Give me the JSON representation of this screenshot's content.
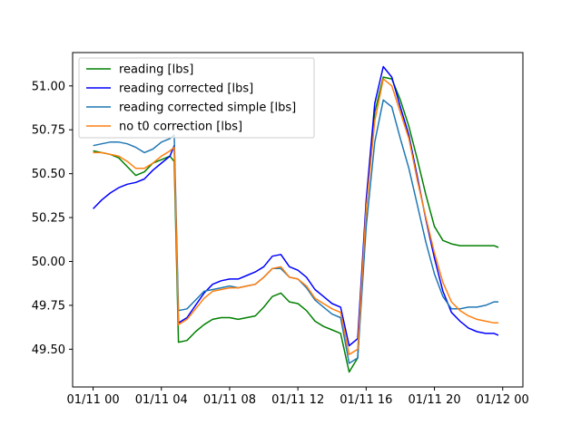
{
  "chart_data": {
    "type": "line",
    "title": "",
    "xlabel": "",
    "ylabel": "",
    "grid": false,
    "legend_placement": "top-left",
    "xlim": [
      "01/11 00:00",
      "01/11 23:59"
    ],
    "ylim": [
      49.285,
      51.19
    ],
    "x_ticks": [
      "01/11 00",
      "01/11 04",
      "01/11 08",
      "01/11 12",
      "01/11 16",
      "01/11 20",
      "01/12 00"
    ],
    "y_ticks": [
      "49.50",
      "49.75",
      "50.00",
      "50.25",
      "50.50",
      "50.75",
      "51.00"
    ],
    "x": [
      "01/11 00:00",
      "01/11 00:30",
      "01/11 01:00",
      "01/11 01:30",
      "01/11 02:00",
      "01/11 02:30",
      "01/11 03:00",
      "01/11 03:30",
      "01/11 04:00",
      "01/11 04:30",
      "01/11 04:45",
      "01/11 05:00",
      "01/11 05:30",
      "01/11 06:00",
      "01/11 06:30",
      "01/11 07:00",
      "01/11 07:30",
      "01/11 08:00",
      "01/11 08:30",
      "01/11 09:00",
      "01/11 09:30",
      "01/11 10:00",
      "01/11 10:30",
      "01/11 11:00",
      "01/11 11:30",
      "01/11 12:00",
      "01/11 12:30",
      "01/11 13:00",
      "01/11 13:30",
      "01/11 14:00",
      "01/11 14:30",
      "01/11 15:00",
      "01/11 15:30",
      "01/11 16:00",
      "01/11 16:30",
      "01/11 17:00",
      "01/11 17:30",
      "01/11 18:00",
      "01/11 18:30",
      "01/11 19:00",
      "01/11 19:30",
      "01/11 20:00",
      "01/11 20:30",
      "01/11 21:00",
      "01/11 21:30",
      "01/11 22:00",
      "01/11 22:30",
      "01/11 23:00",
      "01/11 23:30",
      "01/11 23:45"
    ],
    "series": [
      {
        "name": "reading [lbs]",
        "color": "#008000",
        "values": [
          50.63,
          50.62,
          50.61,
          50.59,
          50.54,
          50.49,
          50.51,
          50.56,
          50.58,
          50.6,
          50.57,
          49.54,
          49.55,
          49.6,
          49.64,
          49.67,
          49.68,
          49.68,
          49.67,
          49.68,
          49.69,
          49.74,
          49.8,
          49.82,
          49.77,
          49.76,
          49.72,
          49.66,
          49.63,
          49.61,
          49.59,
          49.37,
          49.45,
          50.3,
          50.85,
          51.05,
          51.04,
          50.92,
          50.77,
          50.58,
          50.38,
          50.2,
          50.12,
          50.1,
          50.09,
          50.09,
          50.09,
          50.09,
          50.09,
          50.08
        ]
      },
      {
        "name": "reading corrected [lbs]",
        "color": "#0000ff",
        "values": [
          50.3,
          50.35,
          50.39,
          50.42,
          50.44,
          50.45,
          50.47,
          50.52,
          50.56,
          50.6,
          50.66,
          49.65,
          49.68,
          49.75,
          49.82,
          49.87,
          49.89,
          49.9,
          49.9,
          49.92,
          49.94,
          49.97,
          50.03,
          50.04,
          49.97,
          49.95,
          49.91,
          49.84,
          49.8,
          49.76,
          49.74,
          49.52,
          49.56,
          50.35,
          50.9,
          51.11,
          51.05,
          50.88,
          50.72,
          50.48,
          50.24,
          50.02,
          49.83,
          49.71,
          49.66,
          49.62,
          49.6,
          49.59,
          49.59,
          49.58
        ]
      },
      {
        "name": "reading corrected simple [lbs]",
        "color": "#1f77b4",
        "values": [
          50.66,
          50.67,
          50.68,
          50.68,
          50.67,
          50.65,
          50.62,
          50.64,
          50.68,
          50.7,
          50.72,
          49.72,
          49.73,
          49.78,
          49.83,
          49.84,
          49.85,
          49.86,
          49.85,
          49.86,
          49.87,
          49.91,
          49.96,
          49.96,
          49.91,
          49.9,
          49.85,
          49.78,
          49.74,
          49.7,
          49.68,
          49.42,
          49.45,
          50.2,
          50.68,
          50.92,
          50.88,
          50.7,
          50.53,
          50.32,
          50.11,
          49.93,
          49.8,
          49.73,
          49.73,
          49.74,
          49.74,
          49.75,
          49.77,
          49.77
        ]
      },
      {
        "name": "no t0 correction [lbs]",
        "color": "#ff7f0e",
        "values": [
          50.62,
          50.62,
          50.61,
          50.6,
          50.57,
          50.53,
          50.53,
          50.56,
          50.6,
          50.63,
          50.65,
          49.64,
          49.67,
          49.73,
          49.79,
          49.83,
          49.84,
          49.85,
          49.85,
          49.86,
          49.87,
          49.91,
          49.96,
          49.97,
          49.91,
          49.9,
          49.86,
          49.79,
          49.76,
          49.73,
          49.71,
          49.47,
          49.5,
          50.3,
          50.8,
          51.04,
          51.0,
          50.85,
          50.7,
          50.46,
          50.25,
          50.05,
          49.88,
          49.77,
          49.72,
          49.69,
          49.67,
          49.66,
          49.65,
          49.65
        ]
      }
    ]
  }
}
